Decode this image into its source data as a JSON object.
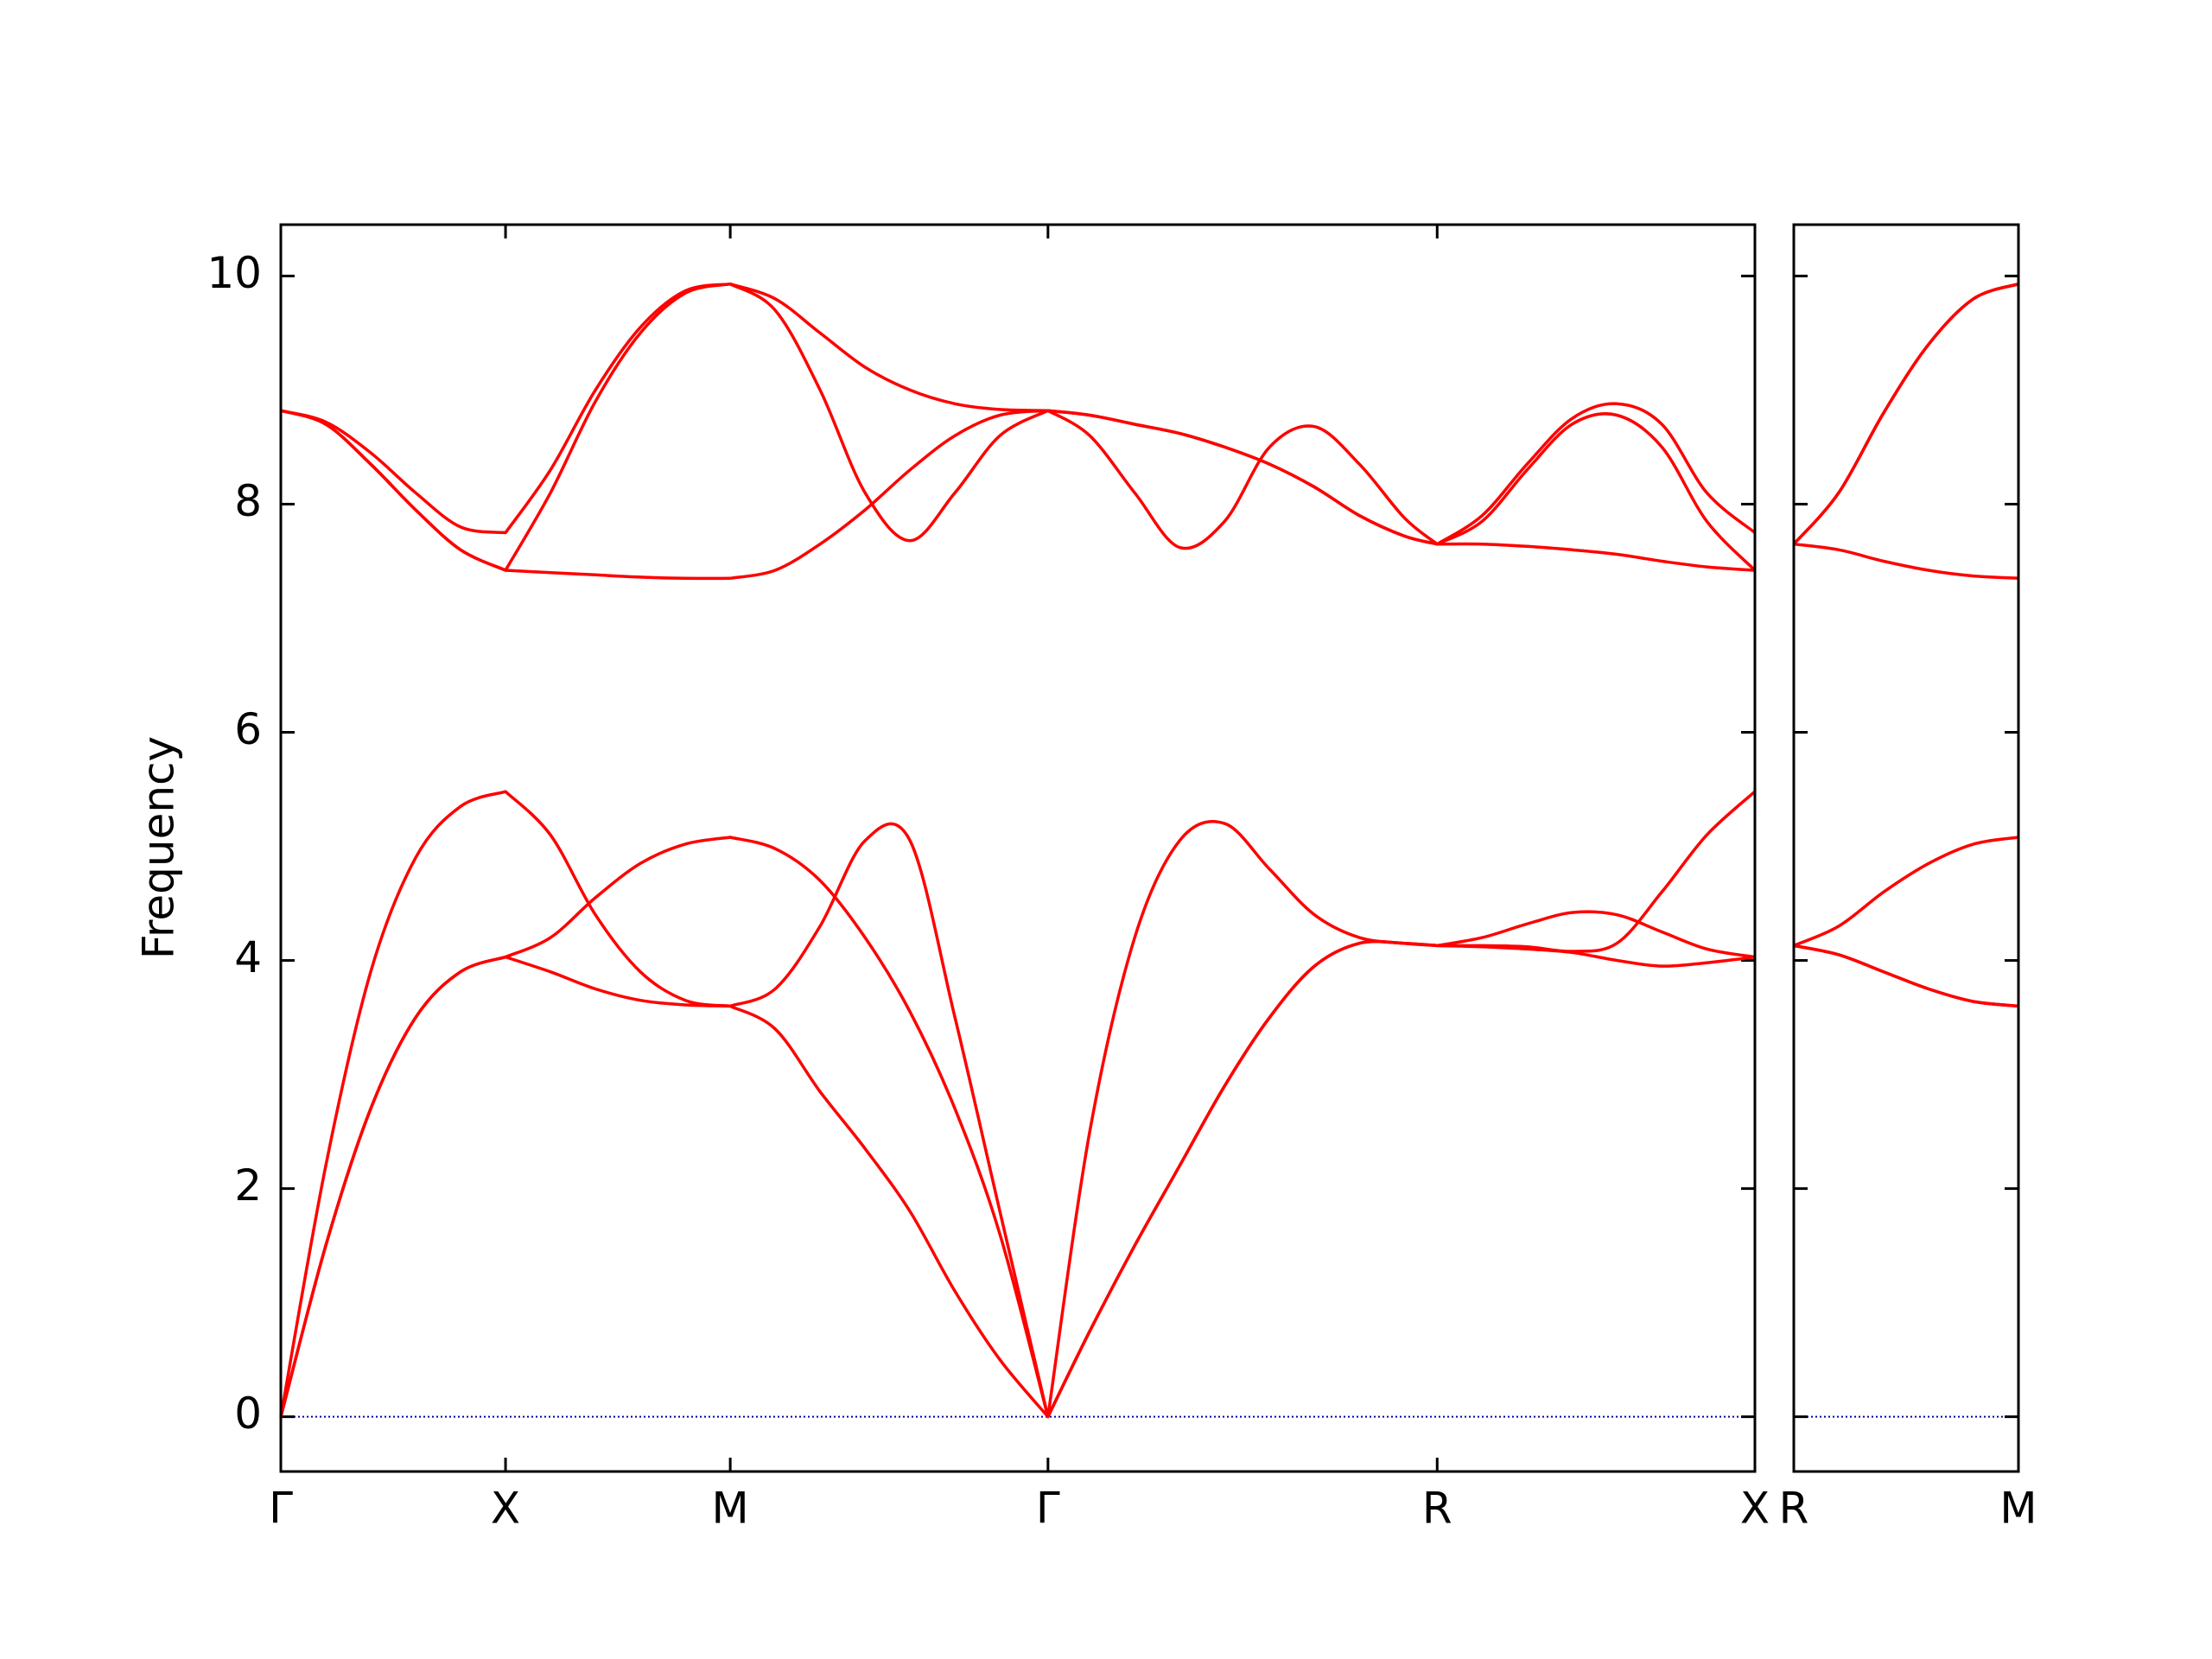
{
  "chart_data": [
    {
      "type": "line",
      "y_label": "Frequency",
      "color": "#ff0000",
      "zero_line_color": "#0000aa",
      "x": [
        0,
        0.1,
        0.2,
        0.3,
        0.4,
        0.5,
        0.6,
        0.7,
        0.8,
        0.9,
        1.0,
        1.1,
        1.2,
        1.3,
        1.4,
        1.5,
        1.6,
        1.707,
        1.8,
        1.9,
        2.0,
        2.1,
        2.2,
        2.3,
        2.4,
        2.5,
        2.573,
        2.673,
        2.773,
        2.873,
        2.973,
        3.073,
        3.173,
        3.28
      ],
      "xlim": [
        0,
        3.28
      ],
      "xticks": [
        {
          "value": 0,
          "label": "Γ"
        },
        {
          "value": 0.5,
          "label": "X"
        },
        {
          "value": 1.0,
          "label": "M"
        },
        {
          "value": 1.707,
          "label": "Γ"
        },
        {
          "value": 2.573,
          "label": "R"
        },
        {
          "value": 3.28,
          "label": "X"
        }
      ],
      "ylim": [
        -0.48,
        10.45
      ],
      "yticks": [
        0,
        2,
        4,
        6,
        8,
        10
      ],
      "series": [
        {
          "values": [
            0,
            1.5,
            2.7,
            3.5,
            3.9,
            4.03,
            3.9,
            3.75,
            3.65,
            3.61,
            3.6,
            3.4,
            2.85,
            2.35,
            1.8,
            1.1,
            0.5,
            0,
            0.75,
            1.5,
            2.2,
            2.9,
            3.5,
            3.95,
            4.15,
            4.15,
            4.13,
            4.12,
            4.1,
            4.07,
            4.0,
            3.95,
            3.98,
            4.03
          ]
        },
        {
          "values": [
            0,
            1.5,
            2.7,
            3.5,
            3.9,
            4.03,
            4.2,
            4.55,
            4.85,
            5.02,
            5.08,
            4.98,
            4.7,
            4.2,
            3.55,
            2.7,
            1.6,
            0,
            0.75,
            1.5,
            2.2,
            2.9,
            3.5,
            3.95,
            4.15,
            4.15,
            4.13,
            4.2,
            4.32,
            4.42,
            4.4,
            4.25,
            4.1,
            4.03
          ]
        },
        {
          "values": [
            0,
            2.2,
            3.9,
            4.9,
            5.35,
            5.48,
            5.1,
            4.4,
            3.9,
            3.65,
            3.6,
            3.75,
            4.3,
            5.05,
            5.05,
            3.5,
            1.8,
            0,
            2.5,
            4.2,
            5.05,
            5.2,
            4.8,
            4.4,
            4.2,
            4.15,
            4.13,
            4.13,
            4.12,
            4.08,
            4.15,
            4.6,
            5.1,
            5.48
          ]
        },
        {
          "values": [
            8.82,
            8.7,
            8.35,
            7.95,
            7.6,
            7.42,
            7.4,
            7.38,
            7.36,
            7.35,
            7.35,
            7.42,
            7.65,
            7.95,
            8.3,
            8.6,
            8.78,
            8.82,
            8.6,
            8.1,
            7.62,
            7.85,
            8.5,
            8.68,
            8.35,
            7.88,
            7.65,
            7.65,
            7.63,
            7.6,
            7.56,
            7.5,
            7.45,
            7.42
          ]
        },
        {
          "values": [
            8.82,
            8.7,
            8.35,
            7.95,
            7.6,
            7.42,
            8.1,
            8.9,
            9.5,
            9.85,
            9.93,
            9.7,
            9.0,
            8.1,
            7.68,
            8.1,
            8.6,
            8.82,
            8.78,
            8.7,
            8.62,
            8.5,
            8.35,
            8.15,
            7.9,
            7.72,
            7.65,
            7.85,
            8.3,
            8.7,
            8.78,
            8.5,
            7.85,
            7.42
          ]
        },
        {
          "values": [
            8.82,
            8.72,
            8.45,
            8.1,
            7.8,
            7.75,
            8.3,
            9.0,
            9.55,
            9.87,
            9.93,
            9.8,
            9.5,
            9.2,
            9.0,
            8.88,
            8.83,
            8.82,
            8.78,
            8.7,
            8.62,
            8.5,
            8.35,
            8.15,
            7.9,
            7.72,
            7.65,
            7.9,
            8.35,
            8.75,
            8.88,
            8.7,
            8.1,
            7.75
          ]
        }
      ]
    },
    {
      "type": "line",
      "color": "#ff0000",
      "zero_line_color": "#0000aa",
      "x": [
        0,
        0.1,
        0.2,
        0.3,
        0.4,
        0.5
      ],
      "xlim": [
        0,
        0.5
      ],
      "xticks": [
        {
          "value": 0,
          "label": "R"
        },
        {
          "value": 0.5,
          "label": "M"
        }
      ],
      "ylim": [
        -0.48,
        10.45
      ],
      "yticks": [
        0,
        2,
        4,
        6,
        8,
        10
      ],
      "series": [
        {
          "values": [
            4.13,
            4.05,
            3.9,
            3.75,
            3.64,
            3.6
          ]
        },
        {
          "values": [
            4.13,
            4.05,
            3.9,
            3.75,
            3.64,
            3.6
          ]
        },
        {
          "values": [
            4.13,
            4.3,
            4.6,
            4.85,
            5.02,
            5.08
          ]
        },
        {
          "values": [
            7.65,
            7.6,
            7.5,
            7.42,
            7.37,
            7.35
          ]
        },
        {
          "values": [
            7.65,
            8.1,
            8.8,
            9.4,
            9.8,
            9.93
          ]
        },
        {
          "values": [
            7.65,
            8.1,
            8.8,
            9.4,
            9.8,
            9.93
          ]
        }
      ]
    }
  ]
}
